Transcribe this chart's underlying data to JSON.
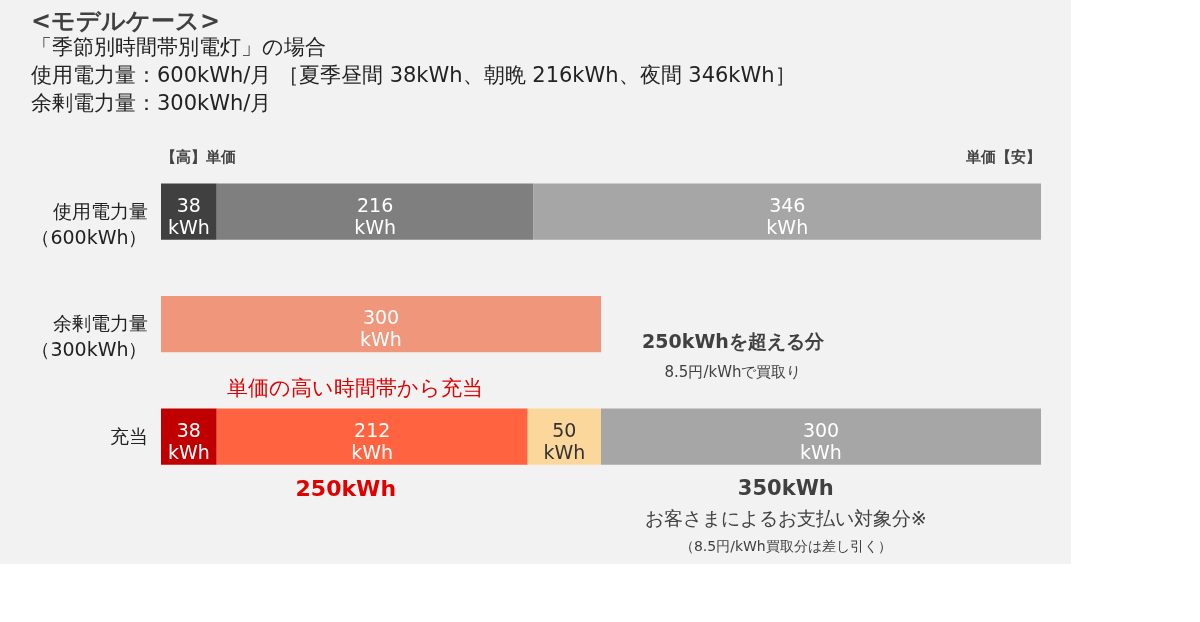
{
  "chart_data": {
    "type": "bar",
    "orientation": "horizontal",
    "title": "<モデルケース>",
    "subtitle": "「季節別時間帯別電灯」の場合",
    "categories": [
      "使用電力量（600kWh）",
      "余剰電力量（300kWh）",
      "充当"
    ],
    "series": [
      {
        "colors": [
          "#404040",
          "#f0967a",
          "#c00000"
        ],
        "values": [
          38,
          300,
          38
        ],
        "value_labels": [
          "38 kWh",
          "300 kWh",
          "38 kWh"
        ]
      },
      {
        "colors": [
          "#7f7f7f",
          null,
          "#ff6340"
        ],
        "values": [
          216,
          null,
          212
        ],
        "value_labels": [
          "216 kWh",
          null,
          "212 kWh"
        ]
      },
      {
        "colors": [
          "#a6a6a6",
          null,
          "#fcd79c"
        ],
        "values": [
          346,
          null,
          50
        ],
        "value_labels": [
          "346 kWh",
          null,
          "50 kWh"
        ]
      },
      {
        "colors": [
          null,
          null,
          "#a6a6a6"
        ],
        "values": [
          null,
          null,
          300
        ],
        "value_labels": [
          null,
          null,
          "300 kWh"
        ]
      }
    ],
    "annotations": [
      "使用電力量：600kWh/月 ［夏季昼間 38kWh、朝晩 216kWh、夜間 346kWh］",
      "余剰電力量：300kWh/月",
      "【高】単価",
      "単価【安】",
      "単価の高い時間帯から充当",
      "250kWhを超える分",
      "8.5円/kWhで買取り",
      "250kWh",
      "350kWh",
      "お客さまによるお支払い対象分※",
      "（8.5円/kWh買取分は差し引く）"
    ],
    "stacked": true
  }
}
